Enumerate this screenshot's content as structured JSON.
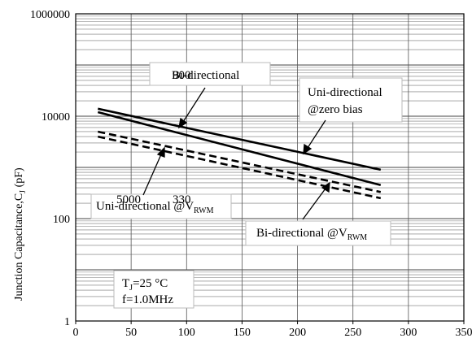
{
  "chart_data": {
    "type": "line",
    "ylabel": "Junction Capacitance,C",
    "ylabel_sub": "J",
    "ylabel_unit": " (pF)",
    "y_scale": "log",
    "ylim": [
      1,
      1000000
    ],
    "xlim": [
      0,
      350
    ],
    "x_ticks": [
      "0",
      "50",
      "100",
      "150",
      "200",
      "250",
      "300",
      "350"
    ],
    "y_ticks": [
      "1",
      "100",
      "10000",
      "1000000"
    ],
    "grid": true,
    "series": [
      {
        "name": "Uni-directional @zero bias",
        "style": "solid",
        "x": [
          20,
          275
        ],
        "y": [
          14000,
          900
        ]
      },
      {
        "name": "Bi-directional",
        "style": "solid",
        "x": [
          20,
          275
        ],
        "y": [
          12000,
          450
        ]
      },
      {
        "name": "Uni-directional @VRWM",
        "style": "dashed",
        "x": [
          20,
          275
        ],
        "y": [
          5000,
          330
        ]
      },
      {
        "name": "Bi-directional @VRWM",
        "style": "dashed",
        "x": [
          20,
          275
        ],
        "y": [
          4000,
          250
        ]
      }
    ],
    "annotations": {
      "bi": {
        "text": "Bi-directional",
        "overlap": "900"
      },
      "uni_zero": {
        "line1": "Uni-directional",
        "line2": "@zero bias"
      },
      "uni_vrwm": {
        "text": "Uni-directional @V",
        "sub": "RWM",
        "num1": "5000",
        "num2": "330"
      },
      "bi_vrwm": {
        "text": "Bi-directional @V",
        "sub": "RWM"
      },
      "conditions": {
        "tj": "T",
        "tj_sub": "J",
        "tj_rest": "=25 °C",
        "freq": "f=1.0MHz"
      }
    }
  }
}
